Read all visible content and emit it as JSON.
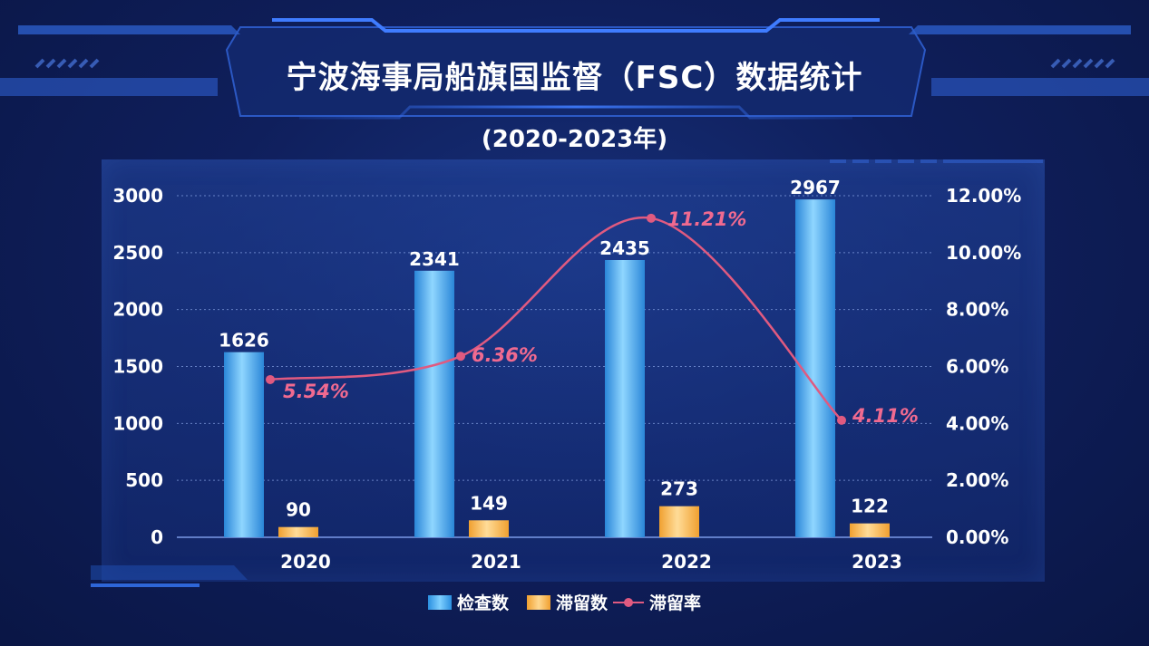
{
  "header": {
    "title": "宁波海事局船旗国监督（FSC）数据统计",
    "subtitle": "(2020-2023年)"
  },
  "legend": {
    "inspections": "检查数",
    "detentions": "滞留数",
    "rate": "滞留率"
  },
  "colors": {
    "inspections": "#4fb3f0",
    "detentions": "#f7b850",
    "rate": "#e05a80",
    "rate_label": "#f06a90"
  },
  "chart_data": {
    "type": "bar",
    "categories": [
      "2020",
      "2021",
      "2022",
      "2023"
    ],
    "series": [
      {
        "name": "检查数",
        "type": "bar",
        "axis": "left",
        "values": [
          1626,
          2341,
          2435,
          2967
        ],
        "labels": [
          "1626",
          "2341",
          "2435",
          "2967"
        ]
      },
      {
        "name": "滞留数",
        "type": "bar",
        "axis": "left",
        "values": [
          90,
          149,
          273,
          122
        ],
        "labels": [
          "90",
          "149",
          "273",
          "122"
        ]
      },
      {
        "name": "滞留率",
        "type": "line",
        "axis": "right",
        "values": [
          5.54,
          6.36,
          11.21,
          4.11
        ],
        "labels": [
          "5.54%",
          "6.36%",
          "11.21%",
          "4.11%"
        ]
      }
    ],
    "y_left": {
      "min": 0,
      "max": 3000,
      "ticks": [
        "0",
        "500",
        "1000",
        "1500",
        "2000",
        "2500",
        "3000"
      ]
    },
    "y_right": {
      "min": 0,
      "max": 12,
      "ticks": [
        "0.00%",
        "2.00%",
        "4.00%",
        "6.00%",
        "8.00%",
        "10.00%",
        "12.00%"
      ]
    },
    "grid": true,
    "legend_position": "bottom"
  }
}
